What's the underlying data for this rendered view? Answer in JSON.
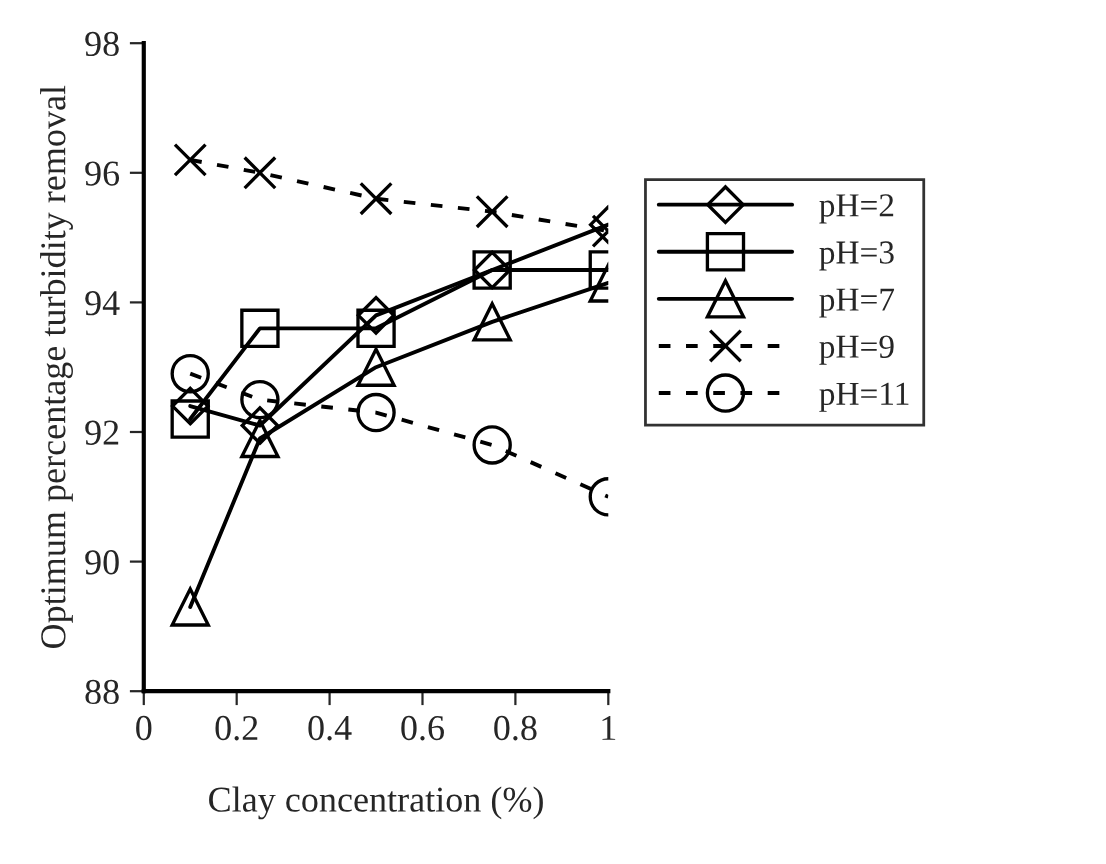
{
  "chart_data": {
    "type": "line",
    "xlabel": "Clay concentration (%)",
    "ylabel": "Optimum percentage turbidity removal",
    "x": [
      0.1,
      0.25,
      0.5,
      0.75,
      1
    ],
    "xlim": [
      0,
      1
    ],
    "xticks": [
      0,
      0.2,
      0.4,
      0.6,
      0.8,
      1
    ],
    "ylim": [
      88,
      98
    ],
    "yticks": [
      88,
      90,
      92,
      94,
      96,
      98
    ],
    "legend": "right",
    "series": [
      {
        "name": "pH=2",
        "color": "#000000",
        "marker": "diamond",
        "line_style": "solid",
        "values": [
          92.4,
          92.1,
          93.8,
          94.5,
          95.2
        ]
      },
      {
        "name": "pH=3",
        "color": "#000000",
        "marker": "square",
        "line_style": "solid",
        "values": [
          92.2,
          93.6,
          93.6,
          94.5,
          94.5
        ]
      },
      {
        "name": "pH=7",
        "color": "#000000",
        "marker": "triangle",
        "line_style": "solid",
        "values": [
          89.3,
          91.9,
          93.0,
          93.7,
          94.3
        ]
      },
      {
        "name": "pH=9",
        "color": "#000000",
        "marker": "cross",
        "line_style": "dashed",
        "values": [
          96.2,
          96.0,
          95.6,
          95.4,
          95.1
        ]
      },
      {
        "name": "pH=11",
        "color": "#000000",
        "marker": "circle",
        "line_style": "dashed",
        "values": [
          92.9,
          92.5,
          92.3,
          91.8,
          91.0
        ]
      }
    ]
  }
}
